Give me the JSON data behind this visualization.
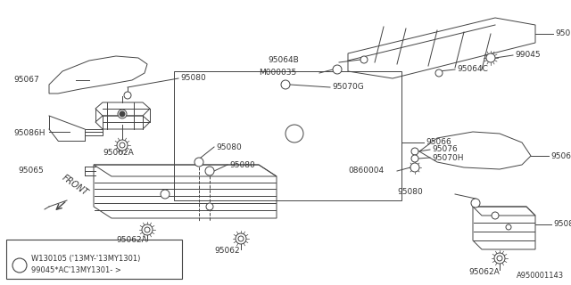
{
  "bg_color": "#ffffff",
  "line_color": "#444444",
  "text_color": "#333333",
  "diagram_id": "A950001143",
  "note_circle": "1",
  "note_line1": "W130105 ('13MY-'13MY1301)",
  "note_line2": "99045*AC'13MY1301- >"
}
